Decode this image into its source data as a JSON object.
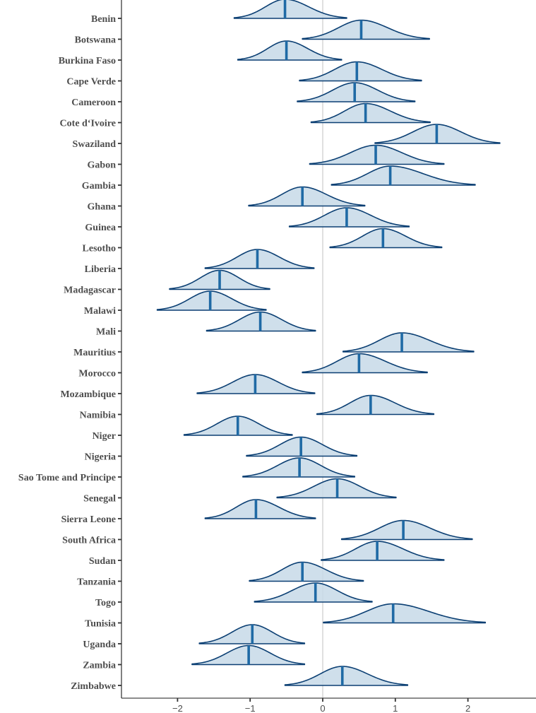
{
  "chart_data": {
    "type": "ridgeline",
    "title": "",
    "xlabel": "",
    "ylabel": "",
    "xlim": [
      -2.8,
      2.95
    ],
    "x_ticks": [
      -2,
      -1,
      0,
      1,
      2
    ],
    "x_tick_labels": [
      "−2",
      "−1",
      "0",
      "1",
      "2"
    ],
    "reference_line_x": 0,
    "grid": false,
    "colors": {
      "fill": "#c7d9e8",
      "outline": "#0b3f73",
      "median": "#1f6aa5",
      "reference_line": "#d9d9d9"
    },
    "series": [
      {
        "name": "Benin",
        "median": -0.52,
        "min": -1.22,
        "max": 0.33
      },
      {
        "name": "Botswana",
        "median": 0.53,
        "min": -0.28,
        "max": 1.47
      },
      {
        "name": "Burkina Faso",
        "median": -0.5,
        "min": -1.17,
        "max": 0.26
      },
      {
        "name": "Cape Verde",
        "median": 0.47,
        "min": -0.32,
        "max": 1.36
      },
      {
        "name": "Cameroon",
        "median": 0.44,
        "min": -0.35,
        "max": 1.27
      },
      {
        "name": "Cote d‘Ivoire",
        "median": 0.59,
        "min": -0.16,
        "max": 1.48
      },
      {
        "name": "Swaziland",
        "median": 1.57,
        "min": 0.72,
        "max": 2.44
      },
      {
        "name": "Gabon",
        "median": 0.73,
        "min": -0.18,
        "max": 1.67
      },
      {
        "name": "Gambia",
        "median": 0.93,
        "min": 0.12,
        "max": 2.1
      },
      {
        "name": "Ghana",
        "median": -0.28,
        "min": -1.02,
        "max": 0.58
      },
      {
        "name": "Guinea",
        "median": 0.33,
        "min": -0.46,
        "max": 1.19
      },
      {
        "name": "Lesotho",
        "median": 0.83,
        "min": 0.1,
        "max": 1.64
      },
      {
        "name": "Liberia",
        "median": -0.9,
        "min": -1.62,
        "max": -0.12
      },
      {
        "name": "Madagascar",
        "median": -1.42,
        "min": -2.11,
        "max": -0.73
      },
      {
        "name": "Malawi",
        "median": -1.55,
        "min": -2.28,
        "max": -0.78
      },
      {
        "name": "Mali",
        "median": -0.86,
        "min": -1.6,
        "max": -0.1
      },
      {
        "name": "Mauritius",
        "median": 1.09,
        "min": 0.28,
        "max": 2.08
      },
      {
        "name": "Morocco",
        "median": 0.5,
        "min": -0.28,
        "max": 1.44
      },
      {
        "name": "Mozambique",
        "median": -0.93,
        "min": -1.73,
        "max": -0.11
      },
      {
        "name": "Namibia",
        "median": 0.66,
        "min": -0.08,
        "max": 1.53
      },
      {
        "name": "Niger",
        "median": -1.17,
        "min": -1.91,
        "max": -0.42
      },
      {
        "name": "Nigeria",
        "median": -0.3,
        "min": -1.05,
        "max": 0.47
      },
      {
        "name": "Sao Tome and Principe",
        "median": -0.32,
        "min": -1.1,
        "max": 0.44
      },
      {
        "name": "Senegal",
        "median": 0.2,
        "min": -0.63,
        "max": 1.01
      },
      {
        "name": "Sierra Leone",
        "median": -0.92,
        "min": -1.62,
        "max": -0.1
      },
      {
        "name": "South Africa",
        "median": 1.11,
        "min": 0.26,
        "max": 2.06
      },
      {
        "name": "Sudan",
        "median": 0.75,
        "min": -0.02,
        "max": 1.67
      },
      {
        "name": "Tanzania",
        "median": -0.28,
        "min": -1.01,
        "max": 0.56
      },
      {
        "name": "Togo",
        "median": -0.1,
        "min": -0.94,
        "max": 0.68
      },
      {
        "name": "Tunisia",
        "median": 0.97,
        "min": 0.01,
        "max": 2.24
      },
      {
        "name": "Uganda",
        "median": -0.97,
        "min": -1.7,
        "max": -0.25
      },
      {
        "name": "Zambia",
        "median": -1.02,
        "min": -1.8,
        "max": -0.25
      },
      {
        "name": "Zimbabwe",
        "median": 0.27,
        "min": -0.52,
        "max": 1.17
      }
    ]
  }
}
